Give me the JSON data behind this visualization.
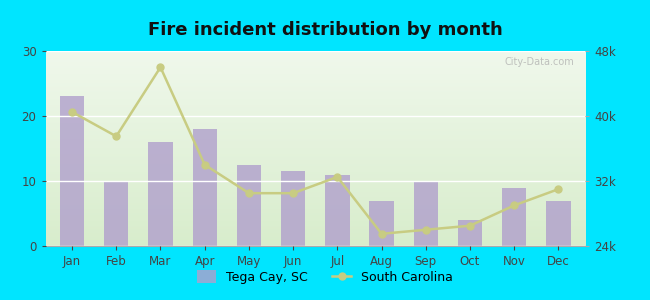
{
  "title": "Fire incident distribution by month",
  "months": [
    "Jan",
    "Feb",
    "Mar",
    "Apr",
    "May",
    "Jun",
    "Jul",
    "Aug",
    "Sep",
    "Oct",
    "Nov",
    "Dec"
  ],
  "bar_values": [
    23,
    10,
    16,
    18,
    12.5,
    11.5,
    11,
    7,
    10,
    4,
    9,
    7
  ],
  "line_values": [
    40500,
    37500,
    46000,
    34000,
    30500,
    30500,
    32500,
    25500,
    26000,
    26500,
    29000,
    31000
  ],
  "bar_color": "#b09fcc",
  "bar_edge_color": "#b09fcc",
  "line_color": "#c8cc82",
  "marker_color": "#c8cc82",
  "bg_top_color": "#d8edcc",
  "bg_bottom_color": "#f0f8ea",
  "outer_background": "#00e5ff",
  "left_ylim": [
    0,
    30
  ],
  "right_ylim": [
    24000,
    48000
  ],
  "left_yticks": [
    0,
    10,
    20,
    30
  ],
  "right_yticks": [
    24000,
    32000,
    40000,
    48000
  ],
  "right_yticklabels": [
    "24k",
    "32k",
    "40k",
    "48k"
  ],
  "legend_bar_label": "Tega Cay, SC",
  "legend_line_label": "South Carolina",
  "title_fontsize": 13,
  "tick_fontsize": 8.5,
  "legend_fontsize": 9
}
